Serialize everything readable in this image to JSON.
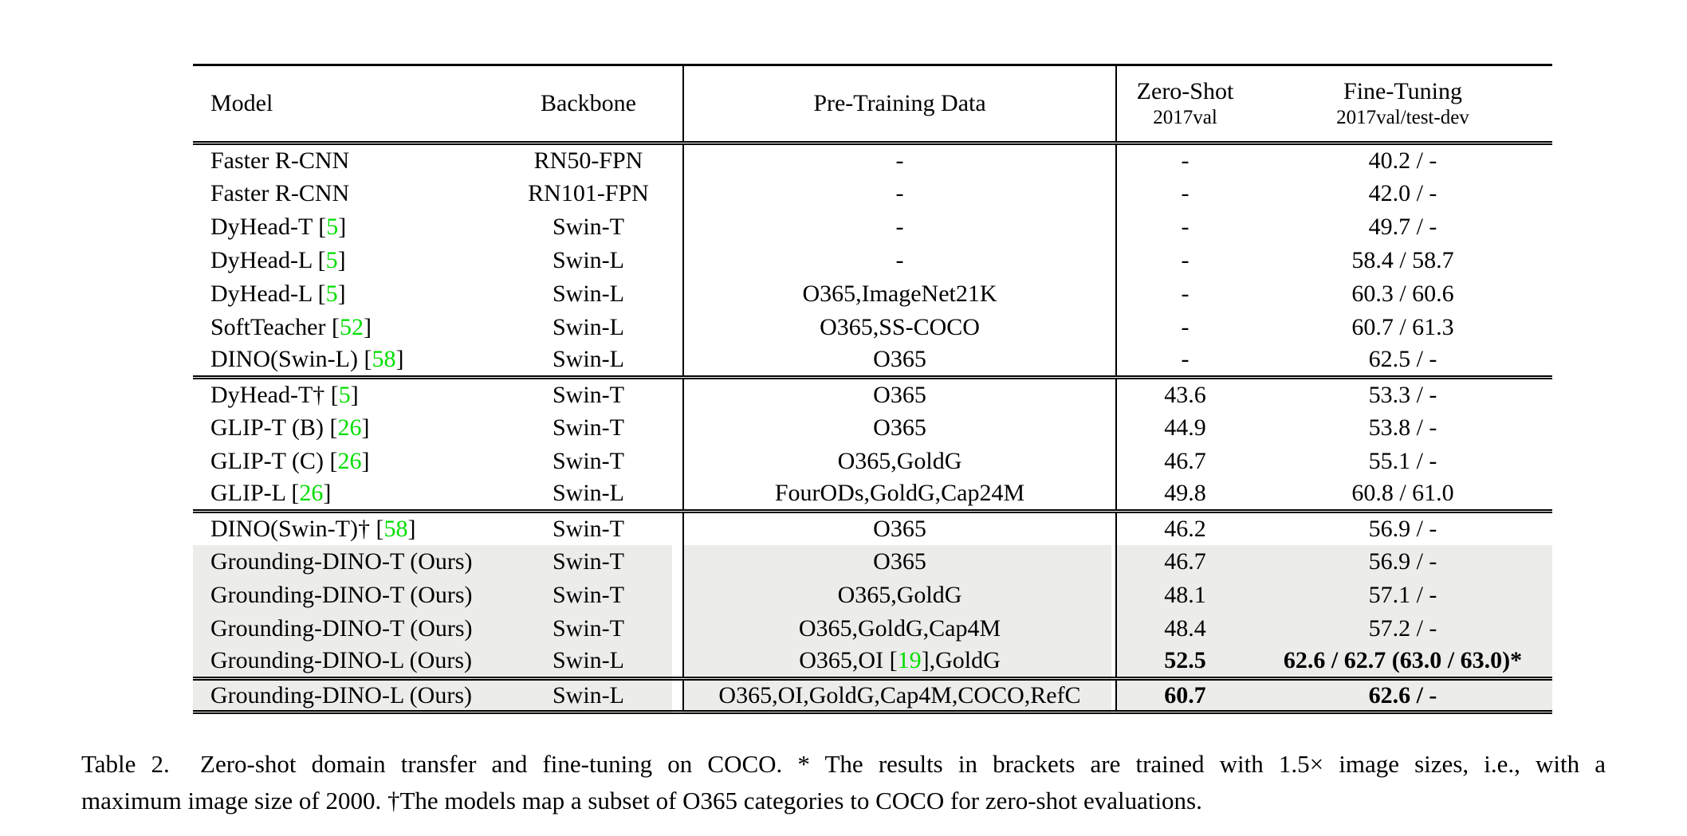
{
  "accent_colors": {
    "citation_green": "#00DD00",
    "row_highlight_gray": "#ECECEB",
    "text": "#000000",
    "background": "#FFFFFF"
  },
  "table": {
    "columns": [
      {
        "label": "Model",
        "sublabel": ""
      },
      {
        "label": "Backbone",
        "sublabel": ""
      },
      {
        "label": "Pre-Training Data",
        "sublabel": ""
      },
      {
        "label": "Zero-Shot",
        "sublabel": "2017val"
      },
      {
        "label": "Fine-Tuning",
        "sublabel": "2017val/test-dev"
      }
    ],
    "groups": [
      {
        "rows": [
          {
            "model": "Faster R-CNN",
            "backbone": "RN50-FPN",
            "pretrain": "-",
            "zeroshot": "-",
            "finetune": "40.2 / -",
            "highlight": false,
            "bold": false
          },
          {
            "model": "Faster R-CNN",
            "backbone": "RN101-FPN",
            "pretrain": "-",
            "zeroshot": "-",
            "finetune": "42.0 / -",
            "highlight": false,
            "bold": false
          },
          {
            "model": "DyHead-T [5]",
            "backbone": "Swin-T",
            "pretrain": "-",
            "zeroshot": "-",
            "finetune": "49.7 / -",
            "highlight": false,
            "bold": false
          },
          {
            "model": "DyHead-L [5]",
            "backbone": "Swin-L",
            "pretrain": "-",
            "zeroshot": "-",
            "finetune": "58.4 / 58.7",
            "highlight": false,
            "bold": false
          },
          {
            "model": "DyHead-L [5]",
            "backbone": "Swin-L",
            "pretrain": "O365,ImageNet21K",
            "zeroshot": "-",
            "finetune": "60.3 / 60.6",
            "highlight": false,
            "bold": false
          },
          {
            "model": "SoftTeacher [52]",
            "backbone": "Swin-L",
            "pretrain": "O365,SS-COCO",
            "zeroshot": "-",
            "finetune": "60.7 / 61.3",
            "highlight": false,
            "bold": false
          },
          {
            "model": "DINO(Swin-L) [58]",
            "backbone": "Swin-L",
            "pretrain": "O365",
            "zeroshot": "-",
            "finetune": "62.5 / -",
            "highlight": false,
            "bold": false
          }
        ]
      },
      {
        "rows": [
          {
            "model": "DyHead-T† [5]",
            "backbone": "Swin-T",
            "pretrain": "O365",
            "zeroshot": "43.6",
            "finetune": "53.3 / -",
            "highlight": false,
            "bold": false
          },
          {
            "model": "GLIP-T (B) [26]",
            "backbone": "Swin-T",
            "pretrain": "O365",
            "zeroshot": "44.9",
            "finetune": "53.8 / -",
            "highlight": false,
            "bold": false
          },
          {
            "model": "GLIP-T (C) [26]",
            "backbone": "Swin-T",
            "pretrain": "O365,GoldG",
            "zeroshot": "46.7",
            "finetune": "55.1 / -",
            "highlight": false,
            "bold": false
          },
          {
            "model": "GLIP-L [26]",
            "backbone": "Swin-L",
            "pretrain": "FourODs,GoldG,Cap24M",
            "zeroshot": "49.8",
            "finetune": "60.8 / 61.0",
            "highlight": false,
            "bold": false
          }
        ]
      },
      {
        "rows": [
          {
            "model": "DINO(Swin-T)† [58]",
            "backbone": "Swin-T",
            "pretrain": "O365",
            "zeroshot": "46.2",
            "finetune": "56.9 / -",
            "highlight": false,
            "bold": false
          },
          {
            "model": "Grounding-DINO-T (Ours)",
            "backbone": "Swin-T",
            "pretrain": "O365",
            "zeroshot": "46.7",
            "finetune": "56.9 / -",
            "highlight": true,
            "bold": false
          },
          {
            "model": "Grounding-DINO-T (Ours)",
            "backbone": "Swin-T",
            "pretrain": "O365,GoldG",
            "zeroshot": "48.1",
            "finetune": "57.1 / -",
            "highlight": true,
            "bold": false
          },
          {
            "model": "Grounding-DINO-T (Ours)",
            "backbone": "Swin-T",
            "pretrain": "O365,GoldG,Cap4M",
            "zeroshot": "48.4",
            "finetune": "57.2 / -",
            "highlight": true,
            "bold": false
          },
          {
            "model": "Grounding-DINO-L (Ours)",
            "backbone": "Swin-L",
            "pretrain": "O365,OI [19],GoldG",
            "zeroshot": "52.5",
            "finetune": "62.6 / 62.7 (63.0 / 63.0)*",
            "highlight": true,
            "bold": true
          }
        ]
      },
      {
        "rows": [
          {
            "model": "Grounding-DINO-L (Ours)",
            "backbone": "Swin-L",
            "pretrain": "O365,OI,GoldG,Cap4M,COCO,RefC",
            "zeroshot": "60.7",
            "finetune": "62.6 / -",
            "highlight": true,
            "bold": true
          }
        ]
      }
    ]
  },
  "caption": {
    "line1": "Table 2.  Zero-shot domain transfer and fine-tuning on COCO. * The results in brackets are trained with 1.5× image sizes, i.e., with a",
    "line2": "maximum image size of 2000. †The models map a subset of O365 categories to COCO for zero-shot evaluations."
  }
}
